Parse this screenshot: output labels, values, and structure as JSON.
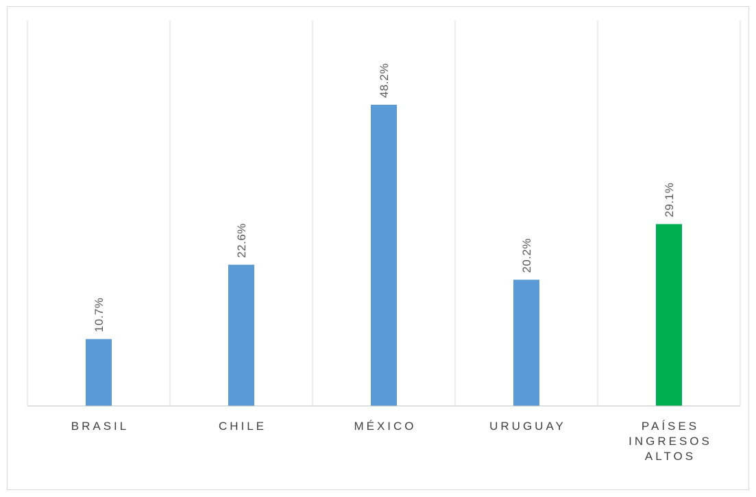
{
  "chart_data": {
    "type": "bar",
    "categories": [
      [
        "BRASIL"
      ],
      [
        "CHILE"
      ],
      [
        "MÉXICO"
      ],
      [
        "URUGUAY"
      ],
      [
        "PAÍSES",
        "INGRESOS",
        "ALTOS"
      ]
    ],
    "values": [
      10.7,
      22.6,
      48.2,
      20.2,
      29.1
    ],
    "data_labels": [
      "10.7%",
      "22.6%",
      "48.2%",
      "20.2%",
      "29.1%"
    ],
    "bar_colors": [
      "#5b9bd5",
      "#5b9bd5",
      "#5b9bd5",
      "#5b9bd5",
      "#00b050"
    ],
    "title": "",
    "xlabel": "",
    "ylabel": "",
    "ylim": [
      0,
      55
    ],
    "grid": "vertical category separators",
    "legend": "none",
    "axis_color": "#bfbfbf",
    "label_color": "#404040",
    "data_label_color": "#595959"
  }
}
